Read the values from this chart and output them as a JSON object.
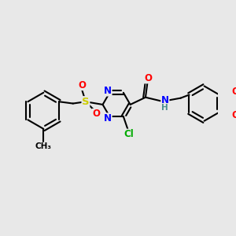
{
  "bg_color": "#e8e8e8",
  "bond_color": "#000000",
  "bond_width": 1.5,
  "atom_colors": {
    "N": "#0000ff",
    "O": "#ff0000",
    "S": "#cccc00",
    "Cl": "#00aa00",
    "H": "#4a9090",
    "C": "#000000"
  },
  "font_size": 8.5
}
